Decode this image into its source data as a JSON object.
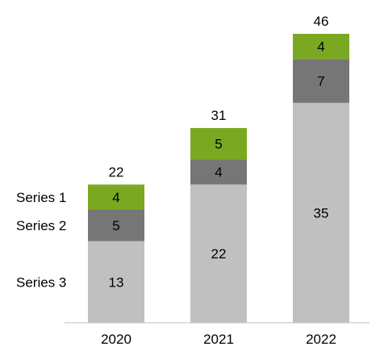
{
  "chart_data": {
    "type": "bar",
    "stacked": true,
    "categories": [
      "2020",
      "2021",
      "2022"
    ],
    "series": [
      {
        "name": "Series 3",
        "values": [
          13,
          22,
          35
        ],
        "color": "#C0C0C0",
        "label_color": "#000000"
      },
      {
        "name": "Series 2",
        "values": [
          5,
          4,
          7
        ],
        "color": "#767676",
        "label_color": "#ffffff"
      },
      {
        "name": "Series 1",
        "values": [
          4,
          5,
          4
        ],
        "color": "#7BA821",
        "label_color": "#ffffff"
      }
    ],
    "totals": [
      22,
      31,
      46
    ],
    "title": "",
    "xlabel": "",
    "ylabel": "",
    "ylim": [
      0,
      46
    ],
    "grid": false,
    "legend": "left, beside first bar"
  }
}
